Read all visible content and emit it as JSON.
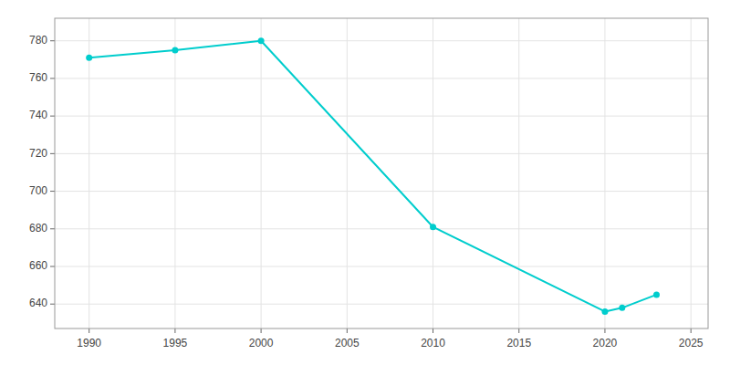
{
  "chart_data": {
    "type": "line",
    "x": [
      1990,
      1995,
      2000,
      2010,
      2020,
      2021,
      2023
    ],
    "values": [
      771,
      775,
      780,
      681,
      636,
      638,
      645
    ],
    "color": "#00CDCD",
    "marker": "circle",
    "xlim": [
      1988,
      2026
    ],
    "ylim": [
      627,
      792
    ],
    "xticks": [
      1990,
      1995,
      2000,
      2005,
      2010,
      2015,
      2020,
      2025
    ],
    "yticks": [
      640,
      660,
      680,
      700,
      720,
      740,
      760,
      780
    ],
    "grid": true
  }
}
